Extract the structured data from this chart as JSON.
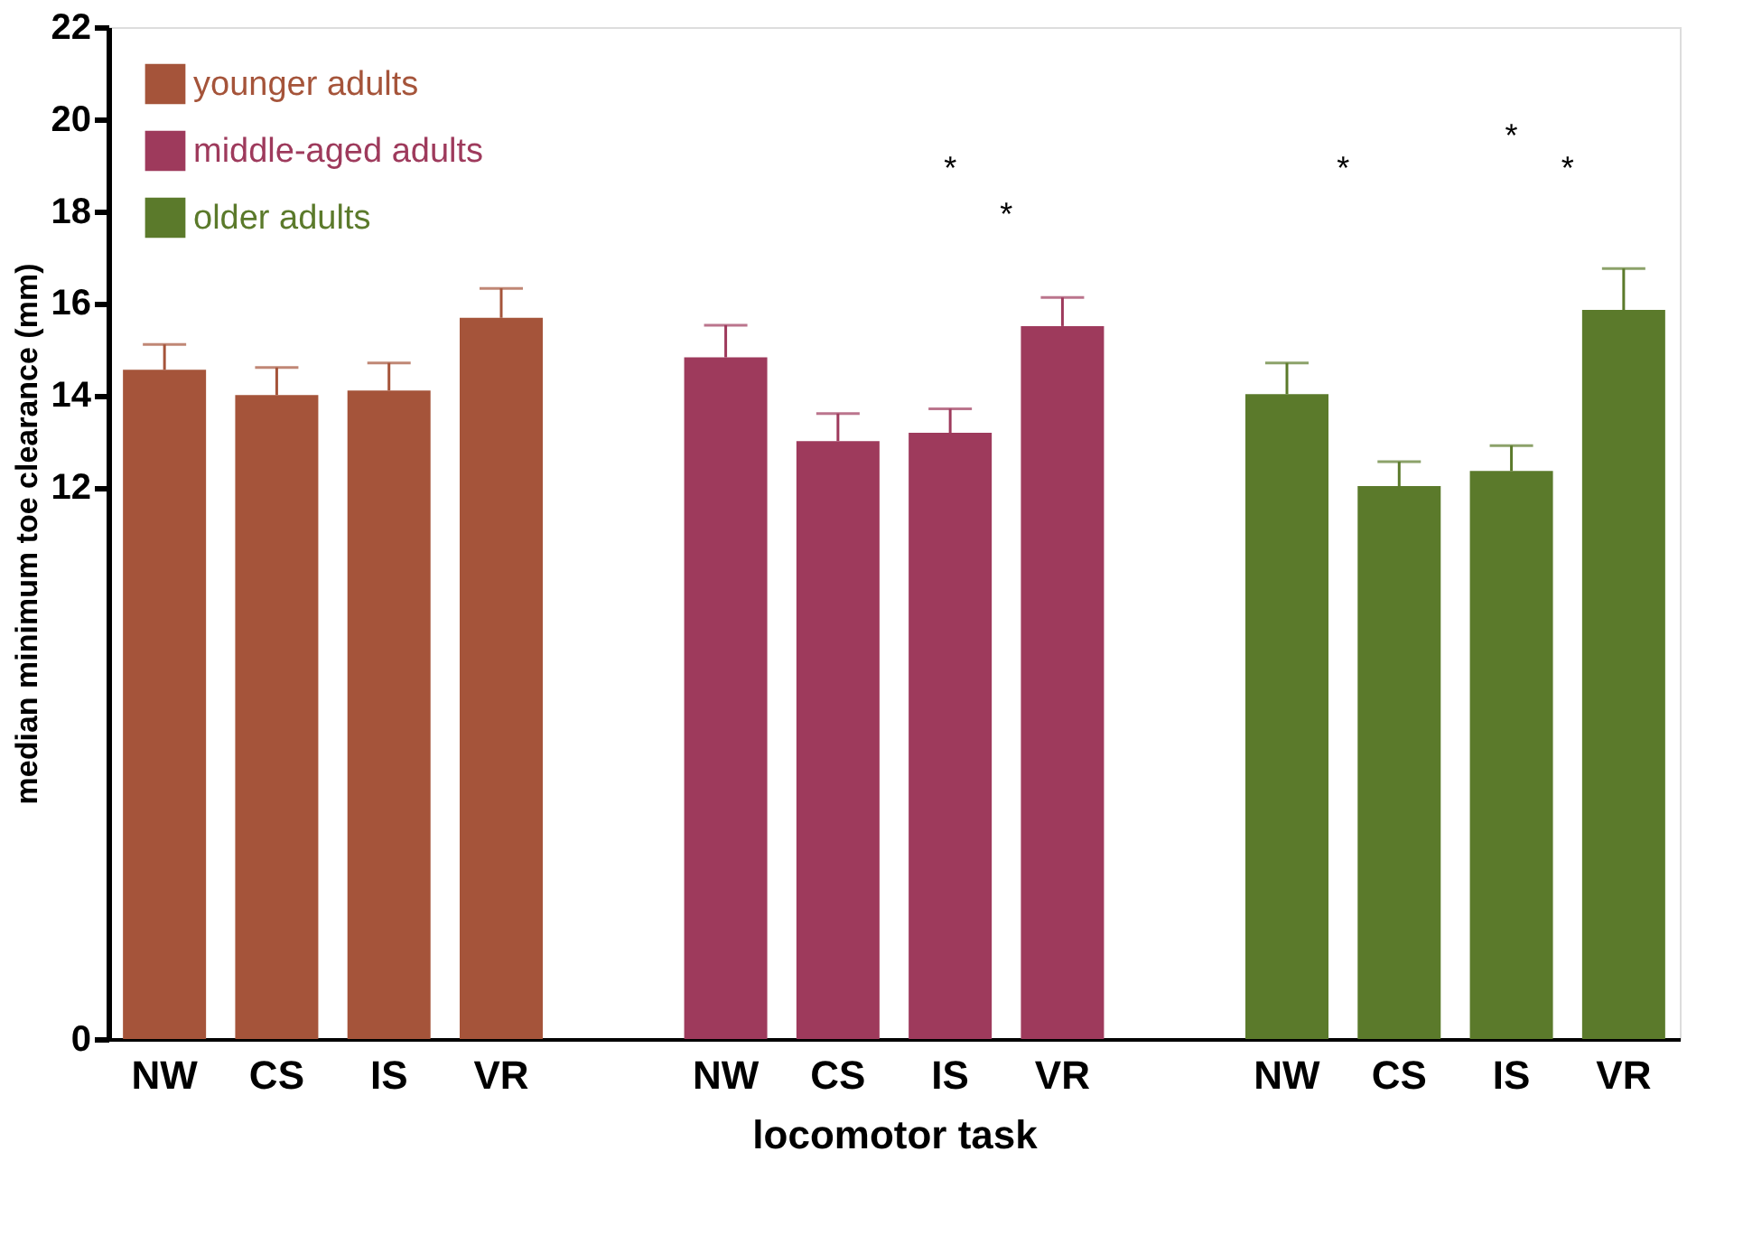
{
  "chart_data": {
    "type": "bar",
    "xlabel": "locomotor task",
    "ylabel": "median minimum toe clearance (mm)",
    "categories": [
      "NW",
      "CS",
      "IS",
      "VR",
      null,
      "NW",
      "CS",
      "IS",
      "VR",
      null,
      "NW",
      "CS",
      "IS",
      "VR"
    ],
    "series": [
      {
        "name": "younger adults",
        "color": "#a5543a",
        "values": [
          14.55,
          14.0,
          14.1,
          15.68,
          null,
          null,
          null,
          null,
          null,
          null,
          null,
          null,
          null,
          null
        ],
        "errors": [
          [
            14.55,
            15.1
          ],
          [
            14.0,
            14.6
          ],
          [
            14.1,
            14.7
          ],
          [
            15.68,
            16.32
          ],
          null,
          null,
          null,
          null,
          null,
          null,
          null,
          null,
          null,
          null
        ]
      },
      {
        "name": "middle-aged adults",
        "color": "#9e3a5c",
        "values": [
          null,
          null,
          null,
          null,
          null,
          14.82,
          13.0,
          13.18,
          15.5,
          null,
          null,
          null,
          null,
          null
        ],
        "errors": [
          null,
          null,
          null,
          null,
          null,
          [
            14.82,
            15.52
          ],
          [
            13.0,
            13.6
          ],
          [
            13.18,
            13.7
          ],
          [
            15.5,
            16.12
          ],
          null,
          null,
          null,
          null,
          null
        ]
      },
      {
        "name": "older adults",
        "color": "#5b7a2b",
        "values": [
          null,
          null,
          null,
          null,
          null,
          null,
          null,
          null,
          null,
          null,
          14.02,
          12.02,
          12.35,
          15.85
        ],
        "errors": [
          null,
          null,
          null,
          null,
          null,
          null,
          null,
          null,
          null,
          null,
          [
            14.02,
            14.7
          ],
          [
            12.02,
            12.55
          ],
          [
            12.35,
            12.9
          ],
          [
            15.85,
            16.75
          ]
        ]
      }
    ],
    "ylim": [
      0,
      22
    ],
    "yticks": [
      0,
      12,
      14,
      16,
      18,
      20,
      22
    ],
    "legend": "top left",
    "grid": false,
    "annotations": [
      "*",
      "*",
      "*",
      "*",
      "*"
    ]
  }
}
